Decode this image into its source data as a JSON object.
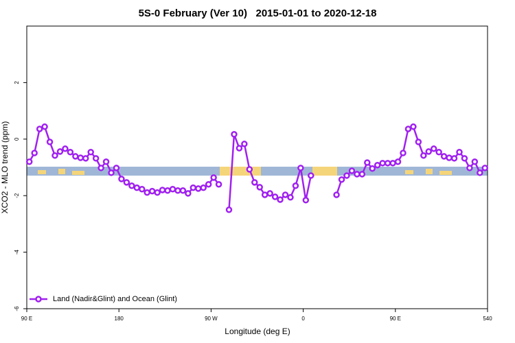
{
  "chart_data": {
    "type": "line",
    "title": "5S-0 February (Ver 10)   2015-01-01 to 2020-12-18",
    "x_label": "Longitude (deg E)",
    "y_label": "XCO2 - MLO trend (ppm)",
    "x": [
      92.5,
      97.5,
      102.5,
      107.5,
      112.5,
      117.5,
      122.5,
      127.5,
      132.5,
      137.5,
      142.5,
      147.5,
      152.5,
      157.5,
      162.5,
      167.5,
      172.5,
      177.5,
      182.5,
      187.5,
      192.5,
      197.5,
      202.5,
      207.5,
      212.5,
      217.5,
      222.5,
      227.5,
      232.5,
      237.5,
      242.5,
      247.5,
      252.5,
      257.5,
      262.5,
      267.5,
      272.5,
      277.5,
      282.5,
      287.5,
      292.5,
      297.5,
      302.5,
      307.5,
      312.5,
      317.5,
      322.5,
      327.5,
      332.5,
      337.5,
      342.5,
      347.5,
      352.5,
      357.5,
      362.5,
      367.5,
      372.5,
      377.5,
      382.5,
      387.5,
      392.5,
      397.5,
      402.5,
      407.5,
      412.5,
      417.5,
      422.5,
      427.5,
      432.5,
      437.5,
      442.5,
      447.5,
      452.5,
      457.5,
      462.5,
      467.5,
      472.5,
      477.5,
      482.5,
      487.5,
      492.5,
      497.5,
      502.5,
      507.5,
      512.5,
      517.5,
      522.5,
      527.5,
      532.5,
      537.5
    ],
    "series": [
      {
        "name": "Land (Nadir&Glint) and Ocean (Glint)",
        "color": "#a020f0",
        "values": [
          -0.8,
          -0.49,
          0.36,
          0.44,
          -0.1,
          -0.58,
          -0.44,
          -0.34,
          -0.46,
          -0.61,
          -0.66,
          -0.68,
          -0.46,
          -0.68,
          -1.02,
          -0.8,
          -1.19,
          -1.02,
          -1.41,
          -1.53,
          -1.65,
          -1.72,
          -1.77,
          -1.89,
          -1.84,
          -1.89,
          -1.8,
          -1.82,
          -1.77,
          -1.82,
          -1.82,
          -1.92,
          -1.72,
          -1.75,
          -1.72,
          -1.6,
          -1.36,
          -1.6,
          null,
          -2.5,
          0.17,
          -0.32,
          -0.17,
          -1.07,
          -1.53,
          -1.7,
          -1.97,
          -1.92,
          -2.04,
          -2.14,
          -1.97,
          -2.06,
          -1.65,
          -1.02,
          -2.16,
          -1.29,
          null,
          null,
          null,
          null,
          -1.97,
          -1.43,
          -1.29,
          -1.12,
          -1.24,
          -1.24,
          -0.83,
          -1.04,
          -0.92,
          -0.85,
          -0.85,
          -0.85,
          -0.8,
          -0.49,
          0.36,
          0.44,
          -0.1,
          -0.58,
          -0.44,
          -0.34,
          -0.46,
          -0.61,
          -0.66,
          -0.68,
          -0.46,
          -0.68,
          -1.02,
          -0.8,
          -1.19,
          -1.02
        ]
      }
    ],
    "xlim": [
      90,
      540
    ],
    "xticks": [
      {
        "value": 90,
        "label": "90 E"
      },
      180,
      {
        "value": 270,
        "label": "90 W"
      },
      {
        "value": 360,
        "label": "0"
      },
      {
        "value": 450,
        "label": "90 E"
      },
      540
    ],
    "ylim": [
      -6,
      4
    ],
    "yticks": [
      -6,
      -4,
      -2,
      0,
      2
    ],
    "legend": "bottom-left"
  }
}
